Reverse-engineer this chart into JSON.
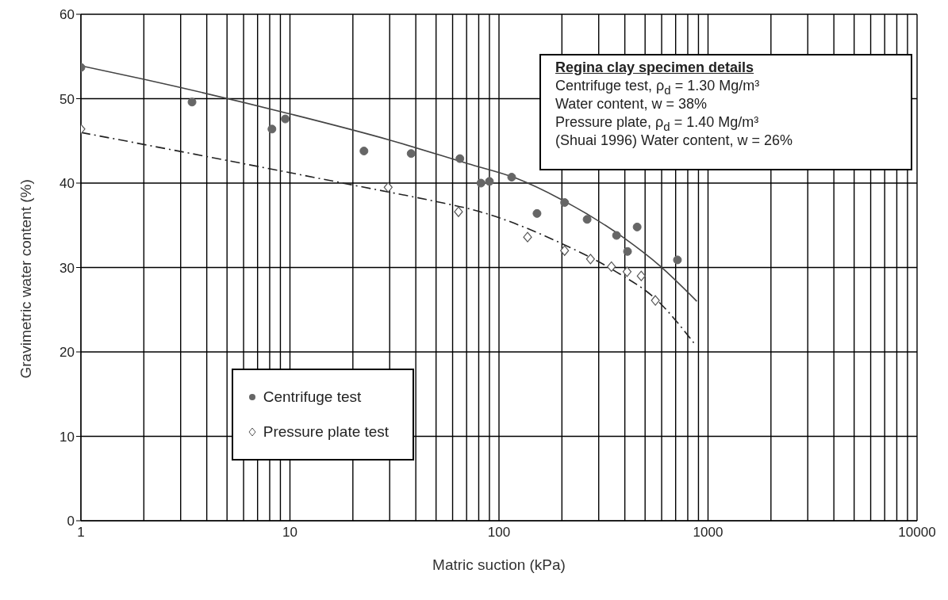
{
  "chart_data": {
    "type": "scatter",
    "xlabel": "Matric suction (kPa)",
    "ylabel": "Gravimetric water content (%)",
    "log": "x",
    "xlim": [
      1,
      10000
    ],
    "xticks": [
      1,
      10,
      100,
      1000,
      10000
    ],
    "ylim": [
      0,
      60
    ],
    "yticks": [
      0,
      10,
      20,
      30,
      40,
      50,
      60
    ],
    "grid": true,
    "legend": "bottom left",
    "series": [
      {
        "name": "Centrifuge test",
        "marker": "circle",
        "color": "#666666",
        "x": [
          1,
          3.4,
          8.2,
          9.5,
          22.6,
          38,
          65,
          82,
          90,
          115,
          152,
          206,
          264,
          365,
          412,
          458,
          714
        ],
        "values": [
          53.7,
          49.6,
          46.4,
          47.6,
          43.8,
          43.5,
          42.9,
          40.0,
          40.2,
          40.7,
          36.4,
          37.7,
          35.7,
          33.8,
          31.9,
          34.8,
          30.9
        ]
      },
      {
        "name": "Pressure plate test",
        "marker": "diamond",
        "color": "#555555",
        "x": [
          1,
          29.5,
          64,
          137,
          206,
          274,
          345,
          410,
          479,
          560
        ],
        "values": [
          46.4,
          39.5,
          36.6,
          33.6,
          32.0,
          31.0,
          30.1,
          29.5,
          29.0,
          26.1
        ]
      },
      {
        "type": "line",
        "line_style": "solid",
        "color": "#444444",
        "x": [
          1,
          2,
          10,
          30,
          71,
          120,
          197,
          396,
          588,
          884
        ],
        "values": [
          53.9,
          52.3,
          48.2,
          45.1,
          42.3,
          40.6,
          38.1,
          33.5,
          30.2,
          26.0
        ]
      },
      {
        "type": "line",
        "line_style": "dashed",
        "color": "#222222",
        "x": [
          1,
          3.9,
          19.7,
          55,
          71,
          197,
          363,
          560,
          872
        ],
        "values": [
          46.0,
          43.2,
          39.8,
          37.6,
          37.0,
          32.9,
          29.5,
          26.3,
          20.8
        ]
      }
    ],
    "annotations": [
      "Regina clay specimen details",
      "Centrifuge test, ρ$_{d}$ = 1.30 Mg/m³",
      "Water content, w = 38%",
      "Pressure plate, ρ$_{d}$ = 1.40 Mg/m³",
      "(Shuai 1996) Water content, w = 26%"
    ]
  }
}
